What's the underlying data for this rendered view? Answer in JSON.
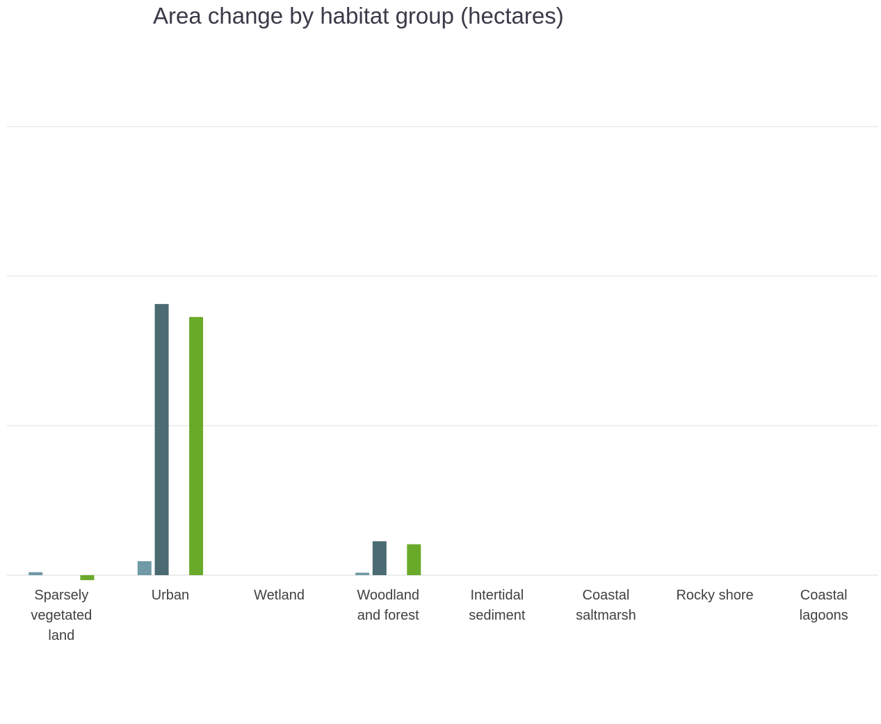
{
  "chart_data": {
    "type": "bar",
    "title": "Area change by habitat group (hectares)",
    "xlabel": "",
    "ylabel": "",
    "grid": true,
    "legend": "none",
    "ylim": [
      0,
      300
    ],
    "categories": [
      "Sparsely vegetated land",
      "Urban",
      "Wetland",
      "Woodland and forest",
      "Intertidal sediment",
      "Coastal saltmarsh",
      "Rocky shore",
      "Coastal lagoons"
    ],
    "category_lines": [
      [
        "Sparsely",
        "vegetated",
        "land"
      ],
      [
        "Urban"
      ],
      [
        "Wetland"
      ],
      [
        "Woodland",
        "and forest"
      ],
      [
        "Intertidal",
        "sediment"
      ],
      [
        "Coastal",
        "saltmarsh"
      ],
      [
        "Rocky shore"
      ],
      [
        "Coastal",
        "lagoons"
      ]
    ],
    "series": [
      {
        "color": "#6f9aa6",
        "values": [
          3,
          14,
          0,
          2.5,
          0,
          0,
          0,
          0
        ]
      },
      {
        "color": "#4a6b72",
        "values": [
          0,
          272,
          0,
          34,
          0,
          0,
          0,
          0
        ]
      },
      {
        "color": "#a6a6a6",
        "values": [
          0,
          0,
          0,
          0,
          0,
          0,
          0,
          0
        ]
      },
      {
        "color": "#6aaa2b",
        "values": [
          -5,
          259,
          0,
          31,
          0,
          0,
          0,
          0
        ]
      }
    ]
  }
}
